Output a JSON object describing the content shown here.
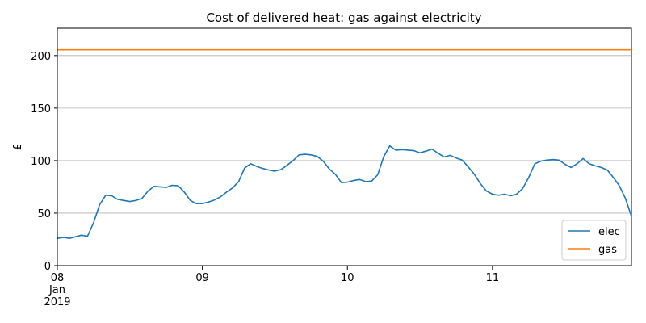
{
  "chart_data": {
    "type": "line",
    "title": "Cost of delivered heat: gas against electricity",
    "xlabel": "",
    "ylabel": "£",
    "ylim": [
      0,
      226
    ],
    "xlim": [
      "2019-01-08 00:00",
      "2019-01-11 23:00"
    ],
    "grid": "horizontal",
    "legend_position": "bottom-right",
    "x_tick_labels": [
      {
        "x": "2019-01-08 00:00",
        "lines": [
          "08",
          "Jan",
          "2019"
        ]
      },
      {
        "x": "2019-01-09 00:00",
        "lines": [
          "09"
        ]
      },
      {
        "x": "2019-01-10 00:00",
        "lines": [
          "10"
        ]
      },
      {
        "x": "2019-01-11 00:00",
        "lines": [
          "11"
        ]
      }
    ],
    "y_ticks": [
      0,
      50,
      100,
      150,
      200
    ],
    "x": [
      "2019-01-08 00:00",
      "2019-01-08 01:00",
      "2019-01-08 02:00",
      "2019-01-08 03:00",
      "2019-01-08 04:00",
      "2019-01-08 05:00",
      "2019-01-08 06:00",
      "2019-01-08 07:00",
      "2019-01-08 08:00",
      "2019-01-08 09:00",
      "2019-01-08 10:00",
      "2019-01-08 11:00",
      "2019-01-08 12:00",
      "2019-01-08 13:00",
      "2019-01-08 14:00",
      "2019-01-08 15:00",
      "2019-01-08 16:00",
      "2019-01-08 17:00",
      "2019-01-08 18:00",
      "2019-01-08 19:00",
      "2019-01-08 20:00",
      "2019-01-08 21:00",
      "2019-01-08 22:00",
      "2019-01-08 23:00",
      "2019-01-09 00:00",
      "2019-01-09 01:00",
      "2019-01-09 02:00",
      "2019-01-09 03:00",
      "2019-01-09 04:00",
      "2019-01-09 05:00",
      "2019-01-09 06:00",
      "2019-01-09 07:00",
      "2019-01-09 08:00",
      "2019-01-09 09:00",
      "2019-01-09 10:00",
      "2019-01-09 11:00",
      "2019-01-09 12:00",
      "2019-01-09 13:00",
      "2019-01-09 14:00",
      "2019-01-09 15:00",
      "2019-01-09 16:00",
      "2019-01-09 17:00",
      "2019-01-09 18:00",
      "2019-01-09 19:00",
      "2019-01-09 20:00",
      "2019-01-09 21:00",
      "2019-01-09 22:00",
      "2019-01-09 23:00",
      "2019-01-10 00:00",
      "2019-01-10 01:00",
      "2019-01-10 02:00",
      "2019-01-10 03:00",
      "2019-01-10 04:00",
      "2019-01-10 05:00",
      "2019-01-10 06:00",
      "2019-01-10 07:00",
      "2019-01-10 08:00",
      "2019-01-10 09:00",
      "2019-01-10 10:00",
      "2019-01-10 11:00",
      "2019-01-10 12:00",
      "2019-01-10 13:00",
      "2019-01-10 14:00",
      "2019-01-10 15:00",
      "2019-01-10 16:00",
      "2019-01-10 17:00",
      "2019-01-10 18:00",
      "2019-01-10 19:00",
      "2019-01-10 20:00",
      "2019-01-10 21:00",
      "2019-01-10 22:00",
      "2019-01-10 23:00",
      "2019-01-11 00:00",
      "2019-01-11 01:00",
      "2019-01-11 02:00",
      "2019-01-11 03:00",
      "2019-01-11 04:00",
      "2019-01-11 05:00",
      "2019-01-11 06:00",
      "2019-01-11 07:00",
      "2019-01-11 08:00",
      "2019-01-11 09:00",
      "2019-01-11 10:00",
      "2019-01-11 11:00",
      "2019-01-11 12:00",
      "2019-01-11 13:00",
      "2019-01-11 14:00",
      "2019-01-11 15:00",
      "2019-01-11 16:00",
      "2019-01-11 17:00",
      "2019-01-11 18:00",
      "2019-01-11 19:00",
      "2019-01-11 20:00",
      "2019-01-11 21:00",
      "2019-01-11 22:00",
      "2019-01-11 23:00"
    ],
    "series": [
      {
        "name": "elec",
        "color": "#1f77b4",
        "values": [
          26,
          27,
          26,
          27.5,
          29,
          28,
          41,
          58,
          67,
          66.5,
          63,
          62,
          61,
          62,
          64,
          71,
          75.5,
          75,
          74.5,
          76.5,
          76,
          70,
          62,
          59,
          59,
          60.5,
          62.5,
          65.5,
          70,
          74,
          80,
          93,
          97,
          94.5,
          92.5,
          91,
          90,
          91.5,
          95.5,
          100,
          105.5,
          106,
          105.5,
          104,
          99.5,
          92,
          87,
          79,
          79.5,
          81,
          82,
          80,
          80.5,
          86.5,
          103.5,
          114,
          110,
          110.5,
          110,
          109.5,
          107.5,
          109,
          111,
          107,
          103.5,
          105,
          102.5,
          100.5,
          94,
          87,
          78,
          71,
          68,
          67,
          68,
          66.5,
          68,
          73.5,
          84,
          97,
          99.5,
          100.5,
          101,
          100.5,
          96.5,
          93.5,
          97,
          102,
          97,
          95,
          93.5,
          91,
          84,
          76,
          64,
          47
        ]
      },
      {
        "name": "gas",
        "color": "#ff7f0e",
        "values": [
          205.5,
          205.5,
          205.5,
          205.5,
          205.5,
          205.5,
          205.5,
          205.5,
          205.5,
          205.5,
          205.5,
          205.5,
          205.5,
          205.5,
          205.5,
          205.5,
          205.5,
          205.5,
          205.5,
          205.5,
          205.5,
          205.5,
          205.5,
          205.5,
          205.5,
          205.5,
          205.5,
          205.5,
          205.5,
          205.5,
          205.5,
          205.5,
          205.5,
          205.5,
          205.5,
          205.5,
          205.5,
          205.5,
          205.5,
          205.5,
          205.5,
          205.5,
          205.5,
          205.5,
          205.5,
          205.5,
          205.5,
          205.5,
          205.5,
          205.5,
          205.5,
          205.5,
          205.5,
          205.5,
          205.5,
          205.5,
          205.5,
          205.5,
          205.5,
          205.5,
          205.5,
          205.5,
          205.5,
          205.5,
          205.5,
          205.5,
          205.5,
          205.5,
          205.5,
          205.5,
          205.5,
          205.5,
          205.5,
          205.5,
          205.5,
          205.5,
          205.5,
          205.5,
          205.5,
          205.5,
          205.5,
          205.5,
          205.5,
          205.5,
          205.5,
          205.5,
          205.5,
          205.5,
          205.5,
          205.5,
          205.5,
          205.5,
          205.5,
          205.5,
          205.5,
          205.5
        ]
      }
    ]
  }
}
